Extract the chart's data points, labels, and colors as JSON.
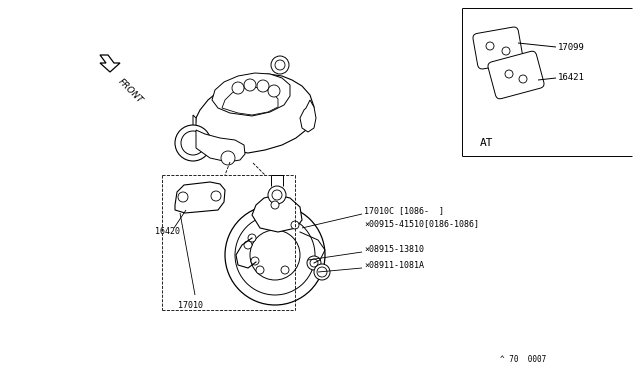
{
  "bg_color": "#ffffff",
  "line_color": "#000000",
  "labels": {
    "front": "FRONT",
    "at": "AT",
    "copyright": "^ 70  0007",
    "17099": "17099",
    "16421": "16421",
    "16420": "16420",
    "17010": "17010",
    "17010c": "17010C [1086-  ]",
    "00915": "×00915-41510[0186-1086]",
    "08915": "×08915-13810",
    "08911": "×08911-1081A"
  },
  "text_color": "#000000",
  "font_size": 7,
  "small_font": 6.5
}
